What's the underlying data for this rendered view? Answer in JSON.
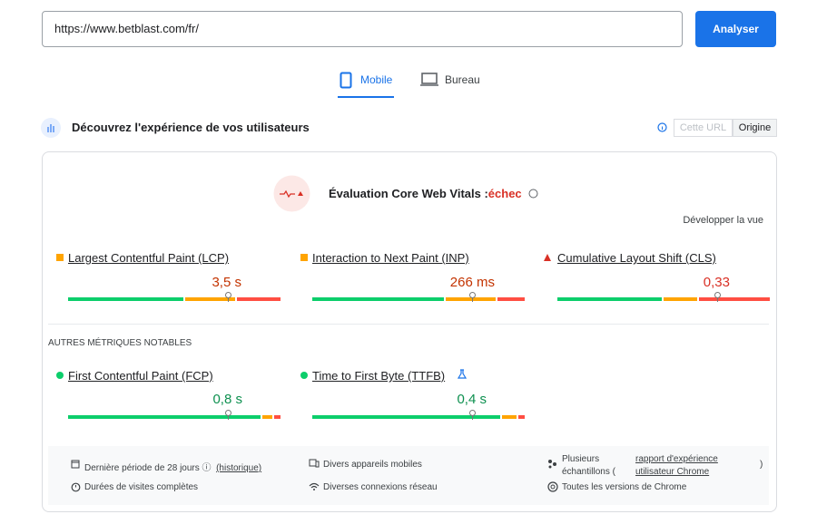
{
  "search": {
    "url": "https://www.betblast.com/fr/",
    "button": "Analyser"
  },
  "tabs": [
    "Mobile",
    "Bureau"
  ],
  "section": {
    "title": "Découvrez l'expérience de vos utilisateurs",
    "toggle": [
      "Cette URL",
      "Origine"
    ]
  },
  "assessment": {
    "label": "Évaluation Core Web Vitals :",
    "status": "échec",
    "expand": "Développer la vue"
  },
  "core_metrics": [
    {
      "name": "Largest Contentful Paint (LCP)",
      "value": "3,5 s"
    },
    {
      "name": "Interaction to Next Paint (INP)",
      "value": "266 ms"
    },
    {
      "name": "Cumulative Layout Shift (CLS)",
      "value": "0,33"
    }
  ],
  "other_heading": "AUTRES MÉTRIQUES NOTABLES",
  "other_metrics": [
    {
      "name": "First Contentful Paint (FCP)",
      "value": "0,8 s"
    },
    {
      "name": "Time to First Byte (TTFB)",
      "value": "0,4 s"
    }
  ],
  "footer": {
    "period": "Dernière période de 28 jours",
    "history": "(historique)",
    "devices": "Divers appareils mobiles",
    "samples": "Plusieurs échantillons (",
    "report": "rapport d'expérience utilisateur Chrome",
    "close": ")",
    "visits": "Durées de visites complètes",
    "network": "Diverses connexions réseau",
    "versions": "Toutes les versions de Chrome"
  }
}
